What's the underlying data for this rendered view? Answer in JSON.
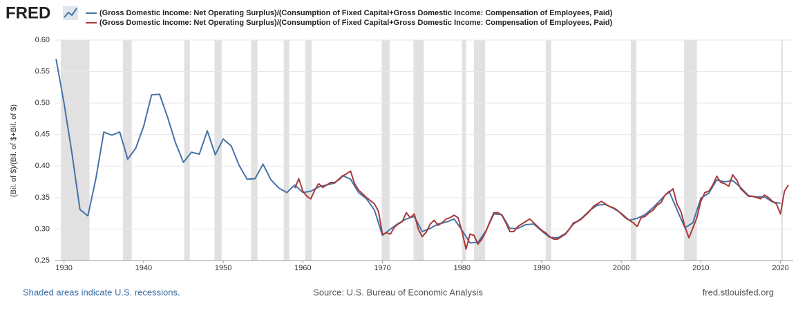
{
  "logo": "FRED",
  "chart_data": {
    "type": "line",
    "y_label": "(Bil. of $)/(Bil. of $+Bil. of $)",
    "xlim": [
      1928.9,
      2021.6
    ],
    "xticks": [
      1930,
      1940,
      1950,
      1960,
      1970,
      1980,
      1990,
      2000,
      2010,
      2020
    ],
    "ylim": [
      0.25,
      0.6
    ],
    "yticks": [
      0.25,
      {
        "value": 0.3,
        "label": "0.30"
      },
      0.35,
      {
        "value": 0.4,
        "label": "0.40"
      },
      0.45,
      {
        "value": 0.5,
        "label": "0.50"
      },
      0.55,
      {
        "value": 0.6,
        "label": "0.60"
      }
    ],
    "grid": true,
    "recession_color": "#e1e1e1",
    "recessions": [
      [
        1929.6,
        1933.2
      ],
      [
        1937.4,
        1938.5
      ],
      [
        1945.1,
        1945.8
      ],
      [
        1948.9,
        1949.8
      ],
      [
        1953.5,
        1954.3
      ],
      [
        1957.6,
        1958.3
      ],
      [
        1960.3,
        1961.1
      ],
      [
        1969.9,
        1970.9
      ],
      [
        1973.9,
        1975.2
      ],
      [
        1980.0,
        1980.5
      ],
      [
        1981.5,
        1982.9
      ],
      [
        1990.5,
        1991.2
      ],
      [
        2001.2,
        2001.9
      ],
      [
        2007.9,
        2009.5
      ],
      [
        2020.1,
        2020.3
      ]
    ],
    "series": [
      {
        "name": "(Gross Domestic Income: Net Operating Surplus)/(Consumption of Fixed Capital+Gross Domestic Income: Compensation of Employees, Paid)",
        "color": "#4572a7",
        "x": [
          1929,
          1930,
          1931,
          1932,
          1933,
          1934,
          1935,
          1936,
          1937,
          1938,
          1939,
          1940,
          1941,
          1942,
          1943,
          1944,
          1945,
          1946,
          1947,
          1948,
          1949,
          1950,
          1951,
          1952,
          1953,
          1954,
          1955,
          1956,
          1957,
          1958,
          1959,
          1960,
          1961,
          1962,
          1963,
          1964,
          1965,
          1966,
          1967,
          1968,
          1969,
          1970,
          1971,
          1972,
          1973,
          1974,
          1975,
          1976,
          1977,
          1978,
          1979,
          1980,
          1981,
          1982,
          1983,
          1984,
          1985,
          1986,
          1987,
          1988,
          1989,
          1990,
          1991,
          1992,
          1993,
          1994,
          1995,
          1996,
          1997,
          1998,
          1999,
          2000,
          2001,
          2002,
          2003,
          2004,
          2005,
          2006,
          2007,
          2008,
          2009,
          2010,
          2011,
          2012,
          2013,
          2014,
          2015,
          2016,
          2017,
          2018,
          2019,
          2020
        ],
        "values": [
          0.57,
          0.5,
          0.42,
          0.331,
          0.321,
          0.38,
          0.454,
          0.449,
          0.454,
          0.411,
          0.428,
          0.463,
          0.513,
          0.514,
          0.478,
          0.437,
          0.406,
          0.422,
          0.419,
          0.456,
          0.418,
          0.443,
          0.432,
          0.401,
          0.379,
          0.38,
          0.403,
          0.378,
          0.365,
          0.358,
          0.37,
          0.358,
          0.36,
          0.367,
          0.37,
          0.373,
          0.385,
          0.379,
          0.358,
          0.348,
          0.33,
          0.29,
          0.3,
          0.309,
          0.316,
          0.32,
          0.296,
          0.301,
          0.308,
          0.311,
          0.316,
          0.298,
          0.278,
          0.279,
          0.297,
          0.324,
          0.323,
          0.301,
          0.301,
          0.307,
          0.308,
          0.297,
          0.287,
          0.286,
          0.293,
          0.308,
          0.317,
          0.329,
          0.338,
          0.339,
          0.333,
          0.325,
          0.314,
          0.317,
          0.323,
          0.334,
          0.347,
          0.36,
          0.331,
          0.302,
          0.31,
          0.349,
          0.357,
          0.378,
          0.375,
          0.377,
          0.366,
          0.353,
          0.351,
          0.351,
          0.343,
          0.341
        ]
      },
      {
        "name": "(Gross Domestic Income: Net Operating Surplus)/(Consumption of Fixed Capital+Gross Domestic Income: Compensation of Employees, Paid)",
        "color": "#aa3939",
        "x": [
          1959,
          1959.5,
          1960,
          1960.5,
          1961,
          1961.5,
          1962,
          1962.5,
          1963,
          1963.5,
          1964,
          1964.5,
          1965,
          1965.5,
          1966,
          1966.5,
          1967,
          1967.5,
          1968,
          1968.5,
          1969,
          1969.5,
          1970,
          1970.5,
          1971,
          1971.5,
          1972,
          1972.5,
          1973,
          1973.5,
          1974,
          1974.5,
          1975,
          1975.5,
          1976,
          1976.5,
          1977,
          1977.5,
          1978,
          1978.5,
          1979,
          1979.5,
          1980,
          1980.5,
          1981,
          1981.5,
          1982,
          1982.5,
          1983,
          1983.5,
          1984,
          1984.5,
          1985,
          1985.5,
          1986,
          1986.5,
          1987,
          1987.5,
          1988,
          1988.5,
          1989,
          1989.5,
          1990,
          1990.5,
          1991,
          1991.5,
          1992,
          1992.5,
          1993,
          1993.5,
          1994,
          1994.5,
          1995,
          1995.5,
          1996,
          1996.5,
          1997,
          1997.5,
          1998,
          1998.5,
          1999,
          1999.5,
          2000,
          2000.5,
          2001,
          2001.5,
          2002,
          2002.5,
          2003,
          2003.5,
          2004,
          2004.5,
          2005,
          2005.5,
          2006,
          2006.5,
          2007,
          2007.5,
          2008,
          2008.5,
          2009,
          2009.5,
          2010,
          2010.5,
          2011,
          2011.5,
          2012,
          2012.5,
          2013,
          2013.5,
          2014,
          2014.5,
          2015,
          2015.5,
          2016,
          2016.5,
          2017,
          2017.5,
          2018,
          2018.5,
          2019,
          2019.5,
          2020,
          2020.5,
          2021
        ],
        "values": [
          0.365,
          0.38,
          0.36,
          0.352,
          0.348,
          0.362,
          0.372,
          0.366,
          0.37,
          0.374,
          0.374,
          0.378,
          0.384,
          0.388,
          0.392,
          0.372,
          0.362,
          0.356,
          0.35,
          0.345,
          0.34,
          0.328,
          0.292,
          0.294,
          0.292,
          0.303,
          0.308,
          0.312,
          0.326,
          0.318,
          0.324,
          0.3,
          0.288,
          0.295,
          0.308,
          0.314,
          0.306,
          0.31,
          0.316,
          0.318,
          0.322,
          0.318,
          0.296,
          0.268,
          0.292,
          0.29,
          0.276,
          0.284,
          0.296,
          0.312,
          0.326,
          0.326,
          0.322,
          0.31,
          0.296,
          0.296,
          0.304,
          0.308,
          0.312,
          0.316,
          0.31,
          0.304,
          0.298,
          0.294,
          0.288,
          0.284,
          0.284,
          0.288,
          0.292,
          0.3,
          0.31,
          0.312,
          0.316,
          0.322,
          0.328,
          0.336,
          0.34,
          0.344,
          0.34,
          0.336,
          0.334,
          0.33,
          0.324,
          0.318,
          0.314,
          0.31,
          0.304,
          0.318,
          0.32,
          0.326,
          0.33,
          0.338,
          0.342,
          0.354,
          0.358,
          0.364,
          0.34,
          0.328,
          0.304,
          0.286,
          0.302,
          0.318,
          0.344,
          0.358,
          0.36,
          0.37,
          0.384,
          0.374,
          0.372,
          0.368,
          0.386,
          0.378,
          0.364,
          0.358,
          0.352,
          0.352,
          0.35,
          0.348,
          0.354,
          0.35,
          0.344,
          0.34,
          0.324,
          0.36,
          0.37
        ]
      }
    ]
  },
  "footer": {
    "left": "Shaded areas indicate U.S. recessions.",
    "center": "Source: U.S. Bureau of Economic Analysis",
    "right": "fred.stlouisfed.org"
  }
}
